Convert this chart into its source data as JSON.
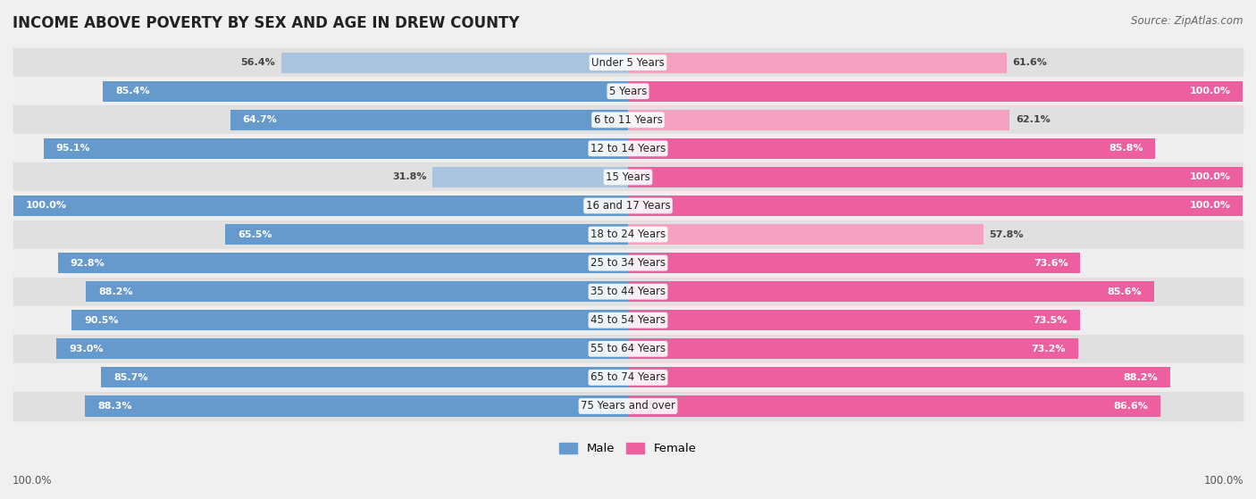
{
  "title": "INCOME ABOVE POVERTY BY SEX AND AGE IN DREW COUNTY",
  "source": "Source: ZipAtlas.com",
  "categories": [
    "Under 5 Years",
    "5 Years",
    "6 to 11 Years",
    "12 to 14 Years",
    "15 Years",
    "16 and 17 Years",
    "18 to 24 Years",
    "25 to 34 Years",
    "35 to 44 Years",
    "45 to 54 Years",
    "55 to 64 Years",
    "65 to 74 Years",
    "75 Years and over"
  ],
  "male_values": [
    56.4,
    85.4,
    64.7,
    95.1,
    31.8,
    100.0,
    65.5,
    92.8,
    88.2,
    90.5,
    93.0,
    85.7,
    88.3
  ],
  "female_values": [
    61.6,
    100.0,
    62.1,
    85.8,
    100.0,
    100.0,
    57.8,
    73.6,
    85.6,
    73.5,
    73.2,
    88.2,
    86.6
  ],
  "male_color_dark": "#6699cc",
  "male_color_light": "#aac4e0",
  "female_color_dark": "#ee5fa0",
  "female_color_light": "#f4a0c0",
  "male_label": "Male",
  "female_label": "Female",
  "row_color_even": "#e0e0e0",
  "row_color_odd": "#efefef",
  "bg_color": "#f0f0f0",
  "max_value": 100.0,
  "footer_value": "100.0%",
  "male_threshold": 60,
  "female_threshold": 70
}
